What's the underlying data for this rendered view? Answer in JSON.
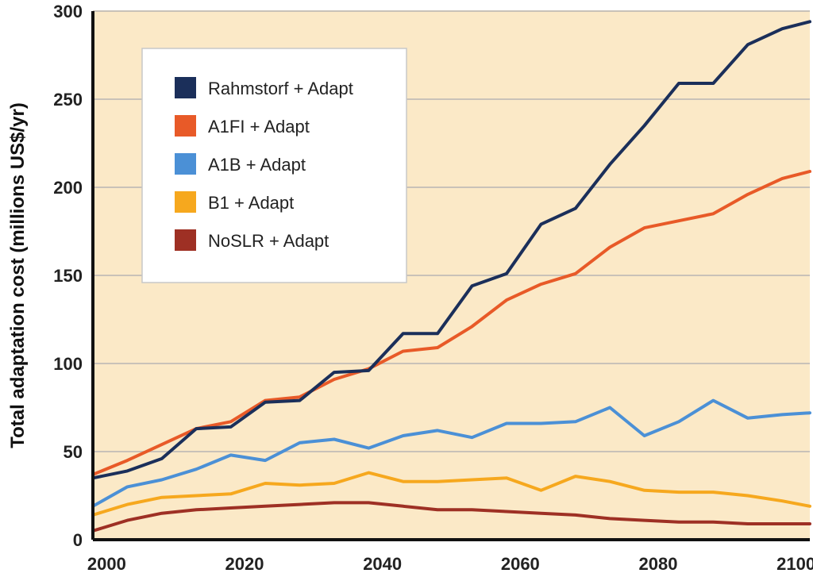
{
  "chart_data": {
    "type": "line",
    "title": "",
    "xlabel": "",
    "ylabel": "Total adaptation cost (millions US$/yr)",
    "xlim": [
      1998,
      2102
    ],
    "ylim": [
      0,
      300
    ],
    "x_ticks": [
      "2000",
      "2020",
      "2040",
      "2060",
      "2080",
      "2100"
    ],
    "y_ticks": [
      "0",
      "50",
      "100",
      "150",
      "200",
      "250",
      "300"
    ],
    "grid": "horizontal",
    "legend_position": "top-left",
    "background": "#fbe9c7",
    "x": [
      1998,
      2003,
      2008,
      2013,
      2018,
      2023,
      2028,
      2033,
      2038,
      2043,
      2048,
      2053,
      2058,
      2063,
      2068,
      2073,
      2078,
      2083,
      2088,
      2093,
      2098,
      2102
    ],
    "series": [
      {
        "name": "Rahmstorf + Adapt",
        "color": "#1b2f5a",
        "values": [
          35,
          39,
          46,
          63,
          64,
          78,
          79,
          95,
          96,
          117,
          117,
          144,
          151,
          179,
          188,
          213,
          235,
          259,
          259,
          281,
          290,
          294
        ]
      },
      {
        "name": "A1FI + Adapt",
        "color": "#e85a28",
        "values": [
          37,
          45,
          54,
          63,
          67,
          79,
          81,
          91,
          97,
          107,
          109,
          121,
          136,
          145,
          151,
          166,
          177,
          181,
          185,
          196,
          205,
          209
        ]
      },
      {
        "name": "A1B + Adapt",
        "color": "#4b90d6",
        "values": [
          19,
          30,
          34,
          40,
          48,
          45,
          55,
          57,
          52,
          59,
          62,
          58,
          66,
          66,
          67,
          75,
          59,
          67,
          79,
          69,
          71,
          72
        ]
      },
      {
        "name": "B1 + Adapt",
        "color": "#f6a81e",
        "values": [
          14,
          20,
          24,
          25,
          26,
          32,
          31,
          32,
          38,
          33,
          33,
          34,
          35,
          28,
          36,
          33,
          28,
          27,
          27,
          25,
          22,
          19
        ]
      },
      {
        "name": "NoSLR + Adapt",
        "color": "#9e3024",
        "values": [
          5,
          11,
          15,
          17,
          18,
          19,
          20,
          21,
          21,
          19,
          17,
          17,
          16,
          15,
          14,
          12,
          11,
          10,
          10,
          9,
          9,
          9
        ]
      }
    ]
  }
}
